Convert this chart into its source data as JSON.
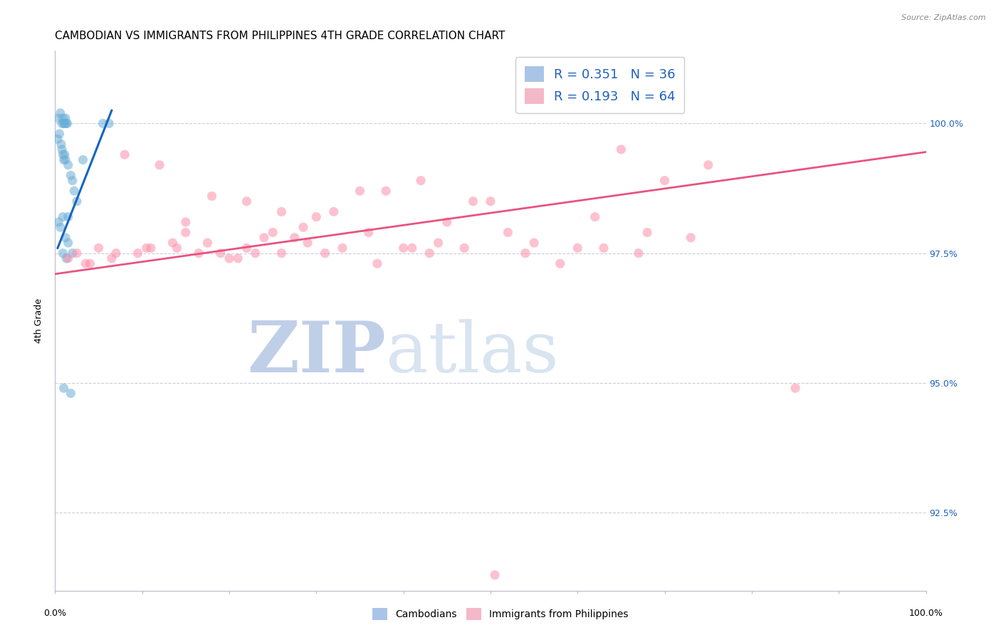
{
  "title": "CAMBODIAN VS IMMIGRANTS FROM PHILIPPINES 4TH GRADE CORRELATION CHART",
  "source": "Source: ZipAtlas.com",
  "ylabel": "4th Grade",
  "ytick_labels": [
    "100.0%",
    "97.5%",
    "95.0%",
    "92.5%"
  ],
  "ytick_values": [
    100.0,
    97.5,
    95.0,
    92.5
  ],
  "xmin": 0.0,
  "xmax": 100.0,
  "ymin": 91.0,
  "ymax": 101.4,
  "legend_r1": "R = 0.351",
  "legend_n1": "N = 36",
  "legend_r2": "R = 0.193",
  "legend_n2": "N = 64",
  "blue_scatter_x": [
    0.4,
    0.6,
    0.8,
    0.9,
    1.0,
    1.1,
    1.2,
    1.3,
    1.4,
    0.3,
    0.5,
    0.7,
    0.8,
    0.9,
    1.0,
    1.1,
    1.2,
    1.5,
    1.8,
    2.0,
    2.2,
    5.5,
    6.2,
    2.5,
    3.2,
    1.5,
    0.9,
    0.4,
    0.6,
    1.2,
    1.5,
    2.0,
    0.9,
    1.3,
    1.0,
    1.8
  ],
  "blue_scatter_y": [
    100.1,
    100.2,
    100.0,
    100.1,
    100.0,
    100.0,
    100.1,
    100.0,
    100.0,
    99.7,
    99.8,
    99.6,
    99.5,
    99.4,
    99.3,
    99.4,
    99.3,
    99.2,
    99.0,
    98.9,
    98.7,
    100.0,
    100.0,
    98.5,
    99.3,
    98.2,
    98.2,
    98.1,
    98.0,
    97.8,
    97.7,
    97.5,
    97.5,
    97.4,
    94.9,
    94.8
  ],
  "pink_scatter_x": [
    1.5,
    2.5,
    3.5,
    5.0,
    6.5,
    8.0,
    9.5,
    10.5,
    12.0,
    13.5,
    14.0,
    15.0,
    16.5,
    17.5,
    19.0,
    20.0,
    22.0,
    23.0,
    24.0,
    25.0,
    26.0,
    27.5,
    28.5,
    30.0,
    31.0,
    33.0,
    35.0,
    37.0,
    40.0,
    42.0,
    43.0,
    45.0,
    47.0,
    50.0,
    55.0,
    60.0,
    65.0,
    70.0,
    4.0,
    7.0,
    11.0,
    18.0,
    21.0,
    29.0,
    36.0,
    41.0,
    52.0,
    58.0,
    63.0,
    68.0,
    75.0,
    15.0,
    22.0,
    26.0,
    32.0,
    38.0,
    44.0,
    48.0,
    54.0,
    62.0,
    67.0,
    73.0,
    85.0,
    50.5
  ],
  "pink_scatter_y": [
    97.4,
    97.5,
    97.3,
    97.6,
    97.4,
    99.4,
    97.5,
    97.6,
    99.2,
    97.7,
    97.6,
    97.9,
    97.5,
    97.7,
    97.5,
    97.4,
    97.6,
    97.5,
    97.8,
    97.9,
    97.5,
    97.8,
    98.0,
    98.2,
    97.5,
    97.6,
    98.7,
    97.3,
    97.6,
    98.9,
    97.5,
    98.1,
    97.6,
    98.5,
    97.7,
    97.6,
    99.5,
    98.9,
    97.3,
    97.5,
    97.6,
    98.6,
    97.4,
    97.7,
    97.9,
    97.6,
    97.9,
    97.3,
    97.6,
    97.9,
    99.2,
    98.1,
    98.5,
    98.3,
    98.3,
    98.7,
    97.7,
    98.5,
    97.5,
    98.2,
    97.5,
    97.8,
    94.9,
    91.3
  ],
  "blue_line_x": [
    0.3,
    6.5
  ],
  "blue_line_y": [
    97.6,
    100.25
  ],
  "pink_line_x": [
    0.0,
    100.0
  ],
  "pink_line_y": [
    97.1,
    99.45
  ],
  "blue_color": "#6baed6",
  "pink_color": "#fc8faa",
  "blue_line_color": "#1565c0",
  "pink_line_color": "#e75480",
  "scatter_alpha": 0.55,
  "scatter_size": 90,
  "grid_color": "#ccccdd",
  "background_color": "#ffffff",
  "title_fontsize": 11,
  "axis_label_fontsize": 9,
  "tick_fontsize": 9,
  "legend_fontsize": 13,
  "legend_text_color": "#2060c0",
  "watermark_zip_color": "#c0cfe8",
  "watermark_atlas_color": "#d8e4f0",
  "watermark_zip_fontsize": 72,
  "watermark_atlas_fontsize": 72,
  "bottom_legend_labels": [
    "Cambodians",
    "Immigrants from Philippines"
  ],
  "bottom_legend_colors": [
    "#aac4e8",
    "#f4b8c8"
  ]
}
